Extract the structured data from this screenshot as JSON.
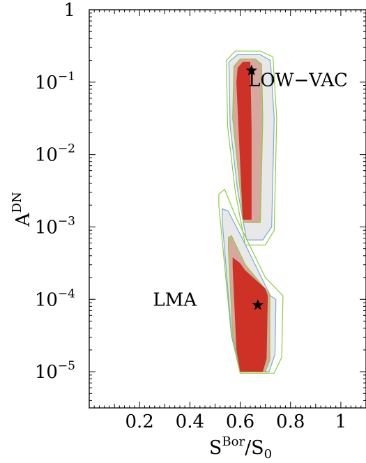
{
  "chart_data": {
    "type": "contour",
    "xlabel": {
      "base": "S",
      "sup": "Bor",
      "sep": "/S",
      "sub": "0"
    },
    "ylabel": {
      "base": "A",
      "sup": "DN"
    },
    "x_scale": "linear",
    "y_scale": "log",
    "xlim": [
      0.0,
      1.1
    ],
    "ylim_log10": [
      -5.5,
      0.0
    ],
    "x_ticks": [
      {
        "value": 0.2,
        "label": "0.2"
      },
      {
        "value": 0.4,
        "label": "0.4"
      },
      {
        "value": 0.6,
        "label": "0.6"
      },
      {
        "value": 0.8,
        "label": "0.8"
      },
      {
        "value": 1.0,
        "label": "1"
      }
    ],
    "y_ticks": [
      {
        "log": 0,
        "base": "1",
        "exp": ""
      },
      {
        "log": -1,
        "base": "10",
        "exp": "−1"
      },
      {
        "log": -2,
        "base": "10",
        "exp": "−2"
      },
      {
        "log": -3,
        "base": "10",
        "exp": "−3"
      },
      {
        "log": -4,
        "base": "10",
        "exp": "−4"
      },
      {
        "log": -5,
        "base": "10",
        "exp": "−5"
      }
    ],
    "regions": [
      {
        "label": "LOW−VAC",
        "label_at": {
          "x": 0.83,
          "log": -0.97
        },
        "best_fit": {
          "x": 0.645,
          "log": -0.84
        },
        "contours": [
          {
            "level": "outer",
            "fill": "none",
            "stroke": "#8ccd3c",
            "points": [
              [
                0.55,
                -1.6
              ],
              [
                0.58,
                -2.5
              ],
              [
                0.62,
                -3.25
              ],
              [
                0.7,
                -3.25
              ],
              [
                0.735,
                -3.05
              ],
              [
                0.745,
                -1.5
              ],
              [
                0.73,
                -0.65
              ],
              [
                0.68,
                -0.57
              ],
              [
                0.58,
                -0.57
              ],
              [
                0.545,
                -0.7
              ]
            ]
          },
          {
            "level": "3sigma",
            "fill": "#e8e8e8",
            "stroke": "#7fa7d8",
            "points": [
              [
                0.56,
                -1.6
              ],
              [
                0.59,
                -2.5
              ],
              [
                0.625,
                -3.18
              ],
              [
                0.69,
                -3.18
              ],
              [
                0.725,
                -3.0
              ],
              [
                0.735,
                -1.5
              ],
              [
                0.72,
                -0.7
              ],
              [
                0.68,
                -0.62
              ],
              [
                0.59,
                -0.62
              ],
              [
                0.555,
                -0.72
              ]
            ]
          },
          {
            "level": "2sigma",
            "fill": "#d6a8a0",
            "stroke": "#8ccd3c",
            "points": [
              [
                0.57,
                -1.5
              ],
              [
                0.6,
                -2.5
              ],
              [
                0.612,
                -2.94
              ],
              [
                0.68,
                -2.94
              ],
              [
                0.69,
                -1.5
              ],
              [
                0.685,
                -0.75
              ],
              [
                0.66,
                -0.68
              ],
              [
                0.6,
                -0.68
              ],
              [
                0.575,
                -0.78
              ]
            ]
          },
          {
            "level": "1sigma",
            "fill": "#ce3227",
            "stroke": "none",
            "points": [
              [
                0.585,
                -1.0
              ],
              [
                0.61,
                -2.9
              ],
              [
                0.645,
                -2.9
              ],
              [
                0.645,
                -1.6
              ],
              [
                0.64,
                -0.72
              ],
              [
                0.61,
                -0.72
              ],
              [
                0.59,
                -0.8
              ]
            ]
          }
        ]
      },
      {
        "label": "LMA",
        "label_at": {
          "x": 0.34,
          "log": -4.0
        },
        "best_fit": {
          "x": 0.67,
          "log": -4.08
        },
        "contours": [
          {
            "level": "outer",
            "fill": "none",
            "stroke": "#8ccd3c",
            "points": [
              [
                0.515,
                -2.55
              ],
              [
                0.538,
                -2.48
              ],
              [
                0.585,
                -2.88
              ],
              [
                0.7,
                -3.7
              ],
              [
                0.77,
                -3.95
              ],
              [
                0.765,
                -4.8
              ],
              [
                0.735,
                -5.02
              ],
              [
                0.6,
                -5.02
              ],
              [
                0.565,
                -4.5
              ],
              [
                0.515,
                -2.7
              ]
            ]
          },
          {
            "level": "3sigma",
            "fill": "#e8e8e8",
            "stroke": "#7fa7d8",
            "points": [
              [
                0.528,
                -2.75
              ],
              [
                0.552,
                -2.78
              ],
              [
                0.6,
                -3.1
              ],
              [
                0.72,
                -3.95
              ],
              [
                0.742,
                -4.0
              ],
              [
                0.738,
                -4.76
              ],
              [
                0.715,
                -5.0
              ],
              [
                0.6,
                -5.0
              ],
              [
                0.566,
                -4.5
              ],
              [
                0.528,
                -2.9
              ]
            ]
          },
          {
            "level": "2sigma",
            "fill": "#d6a8a0",
            "stroke": "#8ccd3c",
            "points": [
              [
                0.553,
                -3.15
              ],
              [
                0.565,
                -3.12
              ],
              [
                0.62,
                -3.52
              ],
              [
                0.7,
                -3.86
              ],
              [
                0.718,
                -3.93
              ],
              [
                0.718,
                -4.84
              ],
              [
                0.7,
                -5.0
              ],
              [
                0.6,
                -5.0
              ],
              [
                0.57,
                -4.5
              ],
              [
                0.553,
                -3.3
              ]
            ]
          },
          {
            "level": "1sigma",
            "fill": "#ce3227",
            "stroke": "none",
            "points": [
              [
                0.57,
                -3.42
              ],
              [
                0.6,
                -3.5
              ],
              [
                0.62,
                -3.6
              ],
              [
                0.7,
                -3.85
              ],
              [
                0.71,
                -3.95
              ],
              [
                0.705,
                -4.82
              ],
              [
                0.69,
                -5.0
              ],
              [
                0.6,
                -5.0
              ],
              [
                0.585,
                -4.7
              ],
              [
                0.57,
                -3.55
              ]
            ]
          }
        ]
      }
    ]
  }
}
